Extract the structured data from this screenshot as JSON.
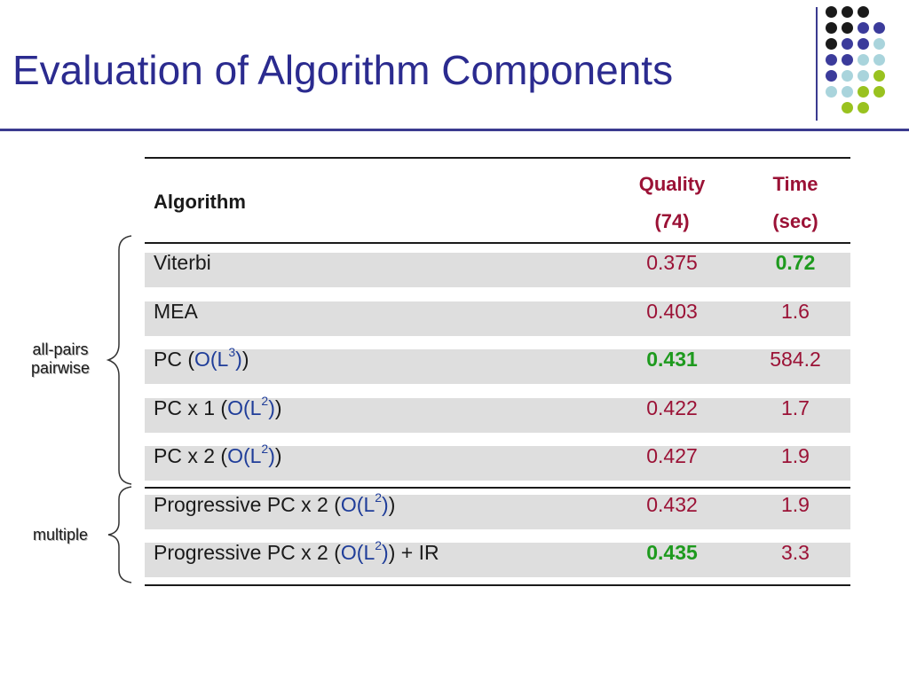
{
  "slide": {
    "title": "Evaluation of Algorithm Components"
  },
  "decoration": {
    "dot_colors": {
      "black": "#1a1a1a",
      "indigo": "#3b3b9b",
      "lightblue": "#a9d4dc",
      "green": "#99c21f"
    },
    "dot_grid": [
      [
        "black",
        "black",
        "black",
        null
      ],
      [
        "black",
        "black",
        "indigo",
        "indigo"
      ],
      [
        "black",
        "indigo",
        "indigo",
        "lightblue"
      ],
      [
        "indigo",
        "indigo",
        "lightblue",
        "lightblue"
      ],
      [
        "indigo",
        "lightblue",
        "lightblue",
        "green"
      ],
      [
        "lightblue",
        "lightblue",
        "green",
        "green"
      ],
      [
        null,
        "green",
        "green",
        null
      ]
    ]
  },
  "table": {
    "headers": {
      "algorithm": "Algorithm",
      "quality_1": "Quality",
      "quality_2": "(74)",
      "time_1": "Time",
      "time_2": "(sec)"
    },
    "rows": [
      {
        "name": "Viterbi",
        "complexity": "",
        "exp": "",
        "suffix": "",
        "quality": "0.375",
        "quality_best": false,
        "time": "0.72",
        "time_best": true
      },
      {
        "name": "MEA",
        "complexity": "",
        "exp": "",
        "suffix": "",
        "quality": "0.403",
        "quality_best": false,
        "time": "1.6",
        "time_best": false
      },
      {
        "name": "PC (",
        "complexity": "O(L",
        "exp": "3",
        "suffix": ")",
        "quality": "0.431",
        "quality_best": true,
        "time": "584.2",
        "time_best": false
      },
      {
        "name": "PC x 1 (",
        "complexity": "O(L",
        "exp": "2",
        "suffix": ")",
        "quality": "0.422",
        "quality_best": false,
        "time": "1.7",
        "time_best": false
      },
      {
        "name": "PC x 2 (",
        "complexity": "O(L",
        "exp": "2",
        "suffix": ")",
        "quality": "0.427",
        "quality_best": false,
        "time": "1.9",
        "time_best": false
      },
      {
        "name": "Progressive PC x 2 (",
        "complexity": "O(L",
        "exp": "2",
        "suffix": ")",
        "quality": "0.432",
        "quality_best": false,
        "time": "1.9",
        "time_best": false
      },
      {
        "name": "Progressive PC x 2 (",
        "complexity": "O(L",
        "exp": "2",
        "suffix": ") + IR",
        "quality": "0.435",
        "quality_best": true,
        "time": "3.3",
        "time_best": false
      }
    ],
    "highlight_colors": {
      "value": "#9b1236",
      "best": "#1e9a1e",
      "complexity": "#1f3d99"
    }
  },
  "groups": {
    "all_pairs_line1": "all-pairs",
    "all_pairs_line2": "pairwise",
    "multiple": "multiple"
  }
}
